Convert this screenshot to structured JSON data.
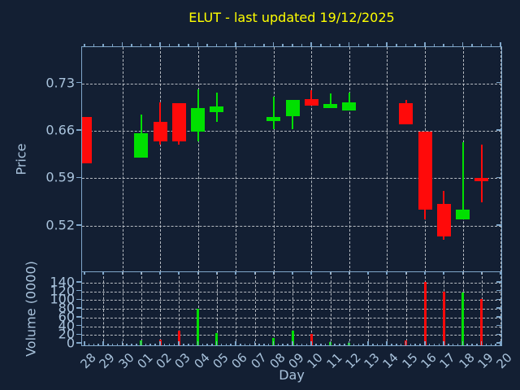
{
  "figure": {
    "title": "ELUT - last updated 19/12/2025",
    "background_color": "#131f33",
    "axis_color": "#7fa6c9",
    "tick_label_color": "#a9c3dc",
    "title_color": "#ffff00",
    "gridline_color": "#d2d6da",
    "up_color": "#00e000",
    "down_color": "#ff0a0a"
  },
  "axes": {
    "price": {
      "label": "Price",
      "tick_labels": [
        "0.73",
        "0.66",
        "0.59",
        "0.52"
      ]
    },
    "volume": {
      "label": "Volume (0000)",
      "tick_labels": [
        "140",
        "120",
        "100",
        "80",
        "60",
        "40",
        "20",
        "0"
      ]
    },
    "x": {
      "label": "Day",
      "tick_labels": [
        "28",
        "29",
        "30",
        "01",
        "02",
        "03",
        "04",
        "05",
        "06",
        "07",
        "08",
        "09",
        "10",
        "11",
        "12",
        "13",
        "14",
        "15",
        "16",
        "17",
        "18",
        "19",
        "20"
      ]
    }
  },
  "chart_data": {
    "type": "candlestick+volume",
    "title": "ELUT - last updated 19/12/2025",
    "xlabel": "Day",
    "price_ylabel": "Price",
    "volume_ylabel": "Volume (0000)",
    "x_categories": [
      "28",
      "29",
      "30",
      "01",
      "02",
      "03",
      "04",
      "05",
      "06",
      "07",
      "08",
      "09",
      "10",
      "11",
      "12",
      "13",
      "14",
      "15",
      "16",
      "17",
      "18",
      "19",
      "20"
    ],
    "price_axis": {
      "ticks": [
        0.73,
        0.66,
        0.59,
        0.52
      ],
      "ylim": [
        0.452,
        0.783
      ],
      "grid": true
    },
    "volume_axis": {
      "ticks": [
        0,
        20,
        40,
        60,
        80,
        100,
        120,
        140
      ],
      "ylim": [
        0,
        164
      ],
      "grid": true
    },
    "price_vgrid_days": [
      "30",
      "02",
      "04",
      "06",
      "08",
      "10",
      "12",
      "14",
      "16",
      "18",
      "20"
    ],
    "volume_vgrid": "every-day",
    "legend": "none",
    "candles": [
      {
        "day": "28",
        "open": 0.68,
        "high": 0.68,
        "low": 0.612,
        "close": 0.612,
        "volume": 0
      },
      {
        "day": "01",
        "open": 0.62,
        "high": 0.684,
        "low": 0.62,
        "close": 0.657,
        "volume": 8
      },
      {
        "day": "02",
        "open": 0.673,
        "high": 0.702,
        "low": 0.64,
        "close": 0.645,
        "volume": 10
      },
      {
        "day": "03",
        "open": 0.701,
        "high": 0.701,
        "low": 0.64,
        "close": 0.645,
        "volume": 30
      },
      {
        "day": "04",
        "open": 0.659,
        "high": 0.721,
        "low": 0.645,
        "close": 0.693,
        "volume": 80
      },
      {
        "day": "05",
        "open": 0.688,
        "high": 0.716,
        "low": 0.673,
        "close": 0.696,
        "volume": 25
      },
      {
        "day": "08",
        "open": 0.674,
        "high": 0.71,
        "low": 0.662,
        "close": 0.68,
        "volume": 13
      },
      {
        "day": "09",
        "open": 0.682,
        "high": 0.706,
        "low": 0.662,
        "close": 0.706,
        "volume": 30
      },
      {
        "day": "10",
        "open": 0.707,
        "high": 0.72,
        "low": 0.697,
        "close": 0.697,
        "volume": 22
      },
      {
        "day": "11",
        "open": 0.694,
        "high": 0.715,
        "low": 0.694,
        "close": 0.7,
        "volume": 3
      },
      {
        "day": "12",
        "open": 0.69,
        "high": 0.716,
        "low": 0.69,
        "close": 0.702,
        "volume": 2
      },
      {
        "day": "15",
        "open": 0.701,
        "high": 0.705,
        "low": 0.67,
        "close": 0.67,
        "volume": 8
      },
      {
        "day": "16",
        "open": 0.659,
        "high": 0.659,
        "low": 0.53,
        "close": 0.544,
        "volume": 141
      },
      {
        "day": "17",
        "open": 0.552,
        "high": 0.572,
        "low": 0.5,
        "close": 0.505,
        "volume": 120
      },
      {
        "day": "18",
        "open": 0.529,
        "high": 0.643,
        "low": 0.529,
        "close": 0.544,
        "volume": 117
      },
      {
        "day": "19",
        "open": 0.591,
        "high": 0.64,
        "low": 0.555,
        "close": 0.586,
        "volume": 103
      }
    ]
  }
}
